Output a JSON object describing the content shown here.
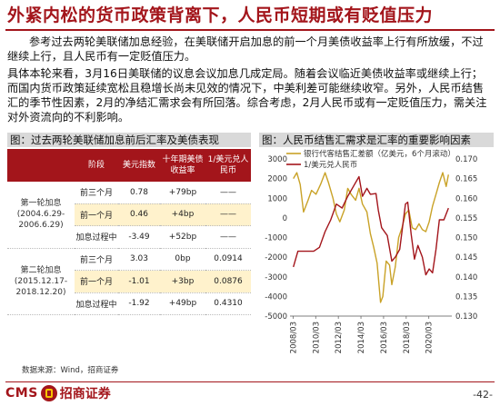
{
  "title": "外紧内松的货币政策背离下，人民币短期或有贬值压力",
  "paragraph1": "参考过去两轮美联储加息经验，在美联储开启加息的前一个月美债收益率上行有所放缓，不过继续上行，且人民币有一定贬值压力。",
  "paragraph2": "具体本轮来看，3月16日美联储的议息会议加息几成定局。随着会议临近美债收益率或继续上行；而国内货币政策延续宽松且稳增长尚未见效的情况下，中美利差可能继续收窄。另外，人民币结售汇的季节性因素，2月的净结汇需求会有所回落。综合考虑，2月人民币或有一定贬值压力，需关注对外资流向的不利影响。",
  "left_panel": {
    "title": "图：过去两轮美联储加息前后汇率及美债表现",
    "headers": [
      "阶段",
      "美元指数",
      "十年期美债收益率",
      "1/美元兑人民币"
    ],
    "groups": [
      {
        "period": "第一轮加息(2004.6.29-2006.6.29)",
        "rows": [
          {
            "stage": "前三个月",
            "dxy": "0.78",
            "ust": "+79bp",
            "cny": "——"
          },
          {
            "stage": "前一个月",
            "dxy": "0.46",
            "ust": "+4bp",
            "cny": "——"
          },
          {
            "stage": "加息过程中",
            "dxy": "-3.49",
            "ust": "+52bp",
            "cny": "——"
          }
        ]
      },
      {
        "period": "第二轮加息(2015.12.17-2018.12.20)",
        "rows": [
          {
            "stage": "前三个月",
            "dxy": "3.03",
            "ust": "0bp",
            "cny": "0.0914"
          },
          {
            "stage": "前一个月",
            "dxy": "-1.01",
            "ust": "+3bp",
            "cny": "0.0876"
          },
          {
            "stage": "加息过程中",
            "dxy": "-1.92",
            "ust": "+49bp",
            "cny": "0.4310"
          }
        ]
      }
    ]
  },
  "source": "数据来源：Wind，招商证券",
  "footer": {
    "brand_en": "CMS",
    "brand_cn": "招商证券",
    "page": "-42-"
  },
  "chart_data": {
    "type": "line",
    "title": "图：人民币结售汇需求是汇率的重要影响因素",
    "legend": [
      "银行代客结售汇差额（亿美元，6个月滚动）",
      "1/美元兑人民币"
    ],
    "legend_position": "top-left",
    "x_ticks": [
      "2008/03",
      "2010/03",
      "2012/03",
      "2014/03",
      "2016/03",
      "2018/03",
      "2020/03"
    ],
    "y_left": {
      "ticks": [
        -5000,
        -4000,
        -3000,
        -2000,
        -1000,
        0,
        1000,
        2000,
        3000
      ],
      "range": [
        -5000,
        3000
      ]
    },
    "y_right": {
      "ticks": [
        0.13,
        0.135,
        0.14,
        0.145,
        0.15,
        0.155,
        0.16,
        0.165,
        0.17
      ],
      "range": [
        0.13,
        0.17
      ]
    },
    "grid": false,
    "series": [
      {
        "name": "银行代客结售汇差额（亿美元，6个月滚动）",
        "axis": "left",
        "color": "#c9a227",
        "x": [
          2008.2,
          2008.5,
          2008.8,
          2009.1,
          2009.5,
          2009.8,
          2010.2,
          2010.6,
          2011.0,
          2011.3,
          2011.7,
          2012.0,
          2012.3,
          2012.7,
          2013.0,
          2013.3,
          2013.7,
          2014.0,
          2014.3,
          2014.7,
          2015.0,
          2015.3,
          2015.6,
          2015.9,
          2016.1,
          2016.4,
          2016.7,
          2016.9,
          2017.2,
          2017.5,
          2017.8,
          2018.1,
          2018.4,
          2018.7,
          2019.0,
          2019.3,
          2019.6,
          2019.9,
          2020.2,
          2020.5,
          2020.8,
          2021.1,
          2021.4,
          2021.7,
          2021.9
        ],
        "values": [
          2000,
          2300,
          1700,
          300,
          900,
          1400,
          1200,
          1700,
          2300,
          1800,
          1000,
          200,
          -200,
          400,
          1500,
          1200,
          900,
          1500,
          700,
          300,
          -800,
          -1500,
          -2300,
          -4300,
          -4000,
          -2200,
          -2400,
          -3400,
          -2500,
          -1000,
          -500,
          200,
          400,
          -500,
          -600,
          -300,
          -600,
          -700,
          -200,
          600,
          1200,
          1800,
          2300,
          1600,
          2200
        ]
      },
      {
        "name": "1/美元兑人民币",
        "axis": "right",
        "color": "#a3151b",
        "x": [
          2008.2,
          2008.6,
          2009.0,
          2009.5,
          2010.0,
          2010.5,
          2011.0,
          2011.5,
          2012.0,
          2012.5,
          2013.0,
          2013.5,
          2014.0,
          2014.3,
          2014.7,
          2015.0,
          2015.5,
          2015.7,
          2016.0,
          2016.5,
          2016.9,
          2017.2,
          2017.6,
          2018.1,
          2018.3,
          2018.6,
          2018.9,
          2019.2,
          2019.6,
          2019.9,
          2020.2,
          2020.5,
          2020.8,
          2021.1,
          2021.5,
          2021.9
        ],
        "values": [
          0.1425,
          0.1465,
          0.1465,
          0.1465,
          0.1465,
          0.1475,
          0.1515,
          0.1545,
          0.1585,
          0.1575,
          0.1605,
          0.163,
          0.1655,
          0.1605,
          0.1625,
          0.161,
          0.1612,
          0.157,
          0.1525,
          0.1505,
          0.144,
          0.145,
          0.147,
          0.1585,
          0.159,
          0.151,
          0.1445,
          0.148,
          0.145,
          0.1405,
          0.142,
          0.141,
          0.147,
          0.1545,
          0.1545,
          0.1575
        ]
      }
    ]
  }
}
